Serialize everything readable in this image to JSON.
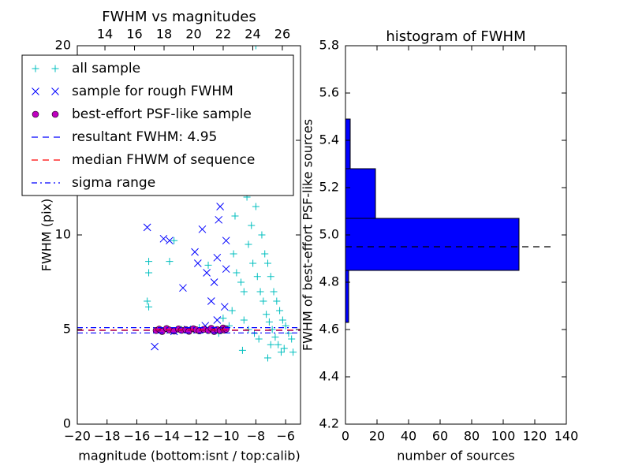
{
  "chart_data": [
    {
      "type": "scatter",
      "title": "FWHM vs magnitudes",
      "xlabel": "magnitude (bottom:isnt / top:calib)",
      "ylabel": "FWHM (pix)",
      "xlim": [
        -20,
        -5
      ],
      "xticks": [
        {
          "value": -20,
          "label": "−20"
        },
        {
          "value": -18,
          "label": "−18"
        },
        {
          "value": -16,
          "label": "−16"
        },
        {
          "value": -14,
          "label": "−14"
        },
        {
          "value": -12,
          "label": "−12"
        },
        {
          "value": -10,
          "label": "−10"
        },
        {
          "value": -8,
          "label": "−8"
        },
        {
          "value": -6,
          "label": "−6"
        }
      ],
      "x2lim": [
        12.13,
        27.23
      ],
      "x2ticks": [
        14,
        16,
        18,
        20,
        22,
        24,
        26
      ],
      "ylim": [
        0,
        20
      ],
      "yticks": [
        0,
        5,
        10,
        15,
        20
      ],
      "legend": "upper left",
      "series": [
        {
          "name": "all sample",
          "marker": "plus",
          "color": "#00bfbf",
          "x": [
            -15.2,
            -15.2,
            -15.3,
            -15.2,
            -13.8,
            -13.5,
            -11.2,
            -10.2,
            -10.0,
            -9.8,
            -9.6,
            -9.4,
            -9.2,
            -9.0,
            -8.8,
            -8.6,
            -8.4,
            -8.2,
            -8.0,
            -8.3,
            -8.0,
            -7.8,
            -7.6,
            -7.4,
            -7.2,
            -7.0,
            -6.8,
            -6.6,
            -6.4,
            -6.2,
            -6.0,
            -5.8,
            -5.6,
            -9.5,
            -9.3,
            -9.0,
            -8.8,
            -8.5,
            -8.2,
            -7.9,
            -7.7,
            -7.5,
            -7.3,
            -7.1,
            -6.9,
            -6.7,
            -6.5,
            -6.3,
            -7.2,
            -8.8,
            -8.5,
            -8.1,
            -7.8,
            -9.8,
            -9.6,
            -10.2,
            -8.9,
            -7.0,
            -6.1,
            -5.5,
            -10.5,
            -11.8,
            -13.0
          ],
          "values": [
            8.6,
            8.0,
            6.5,
            6.2,
            8.6,
            9.7,
            8.4,
            12.3,
            13.5,
            14.5,
            12.8,
            11.0,
            15.5,
            13.0,
            16.5,
            12.0,
            14.0,
            18.0,
            20.0,
            10.5,
            11.5,
            12.5,
            10.0,
            9.0,
            8.5,
            7.8,
            7.0,
            6.5,
            6.0,
            5.5,
            5.2,
            4.8,
            4.5,
            9.0,
            8.0,
            7.5,
            7.0,
            9.5,
            8.5,
            7.8,
            7.0,
            6.5,
            5.8,
            5.4,
            5.0,
            4.6,
            4.2,
            3.8,
            3.5,
            5.5,
            5.0,
            4.8,
            4.5,
            5.2,
            6.0,
            5.6,
            3.9,
            4.2,
            4.0,
            3.8,
            4.8,
            5.1,
            5.0
          ]
        },
        {
          "name": "sample for rough FWHM",
          "marker": "cross",
          "color": "#0000ff",
          "x": [
            -15.3,
            -14.8,
            -14.2,
            -13.8,
            -12.9,
            -12.1,
            -11.9,
            -11.6,
            -11.3,
            -11.0,
            -10.8,
            -10.6,
            -10.5,
            -10.4,
            -10.3,
            -10.3,
            -10.2,
            -10.0,
            -10.1,
            -10.6,
            -11.4,
            -12.6,
            -13.5,
            -10.0
          ],
          "values": [
            10.4,
            4.1,
            9.8,
            9.7,
            7.2,
            9.1,
            8.5,
            10.3,
            8.0,
            6.5,
            7.5,
            8.8,
            10.8,
            11.5,
            12.5,
            13.8,
            15.0,
            8.2,
            6.2,
            5.5,
            5.2,
            5.0,
            4.9,
            9.7
          ]
        },
        {
          "name": "best-effort PSF-like sample",
          "marker": "circle",
          "color": "#bf00bf",
          "x": [
            -14.7,
            -14.5,
            -14.3,
            -14.0,
            -13.8,
            -13.5,
            -13.2,
            -13.0,
            -12.7,
            -12.5,
            -12.2,
            -12.0,
            -11.8,
            -11.5,
            -11.2,
            -11.0,
            -10.8,
            -10.6,
            -10.4,
            -10.2,
            -10.1,
            -10.0
          ],
          "values": [
            4.95,
            5.02,
            4.9,
            5.05,
            4.97,
            4.92,
            5.03,
            4.96,
            5.0,
            4.91,
            5.04,
            4.98,
            4.93,
            5.01,
            4.95,
            5.06,
            4.9,
            5.0,
            4.94,
            5.08,
            4.97,
            5.02
          ]
        },
        {
          "name": "resultant FWHM: 4.95",
          "marker": "hline",
          "style": "dashed",
          "color": "#0000ff",
          "values": [
            4.95
          ]
        },
        {
          "name": "median FHWM of sequence",
          "marker": "hline",
          "style": "dashed",
          "color": "#ff0000",
          "values": [
            4.97
          ]
        },
        {
          "name": "sigma range",
          "marker": "hline",
          "style": "dashdot",
          "color": "#0000ff",
          "values": [
            4.82,
            5.1
          ]
        }
      ]
    },
    {
      "type": "histogram",
      "orientation": "horizontal",
      "title": "histogram of FWHM",
      "xlabel": "number of sources",
      "ylabel": "FWHM of best-effort PSF-like sources",
      "xlim": [
        0,
        140
      ],
      "xticks": [
        0,
        20,
        40,
        60,
        80,
        100,
        120,
        140
      ],
      "ylim": [
        4.2,
        5.8
      ],
      "yticks": [
        4.2,
        4.4,
        4.6,
        4.8,
        {
          "value": 5.0,
          "label": "5.0"
        },
        5.2,
        5.4,
        5.6,
        5.8
      ],
      "bins": [
        4.63,
        4.85,
        5.07,
        5.28,
        5.49
      ],
      "counts": [
        2,
        110,
        19,
        3
      ],
      "color": "#0000ff",
      "hline": {
        "y": 4.95,
        "x": [
          0,
          130
        ],
        "color": "#000000"
      }
    }
  ]
}
